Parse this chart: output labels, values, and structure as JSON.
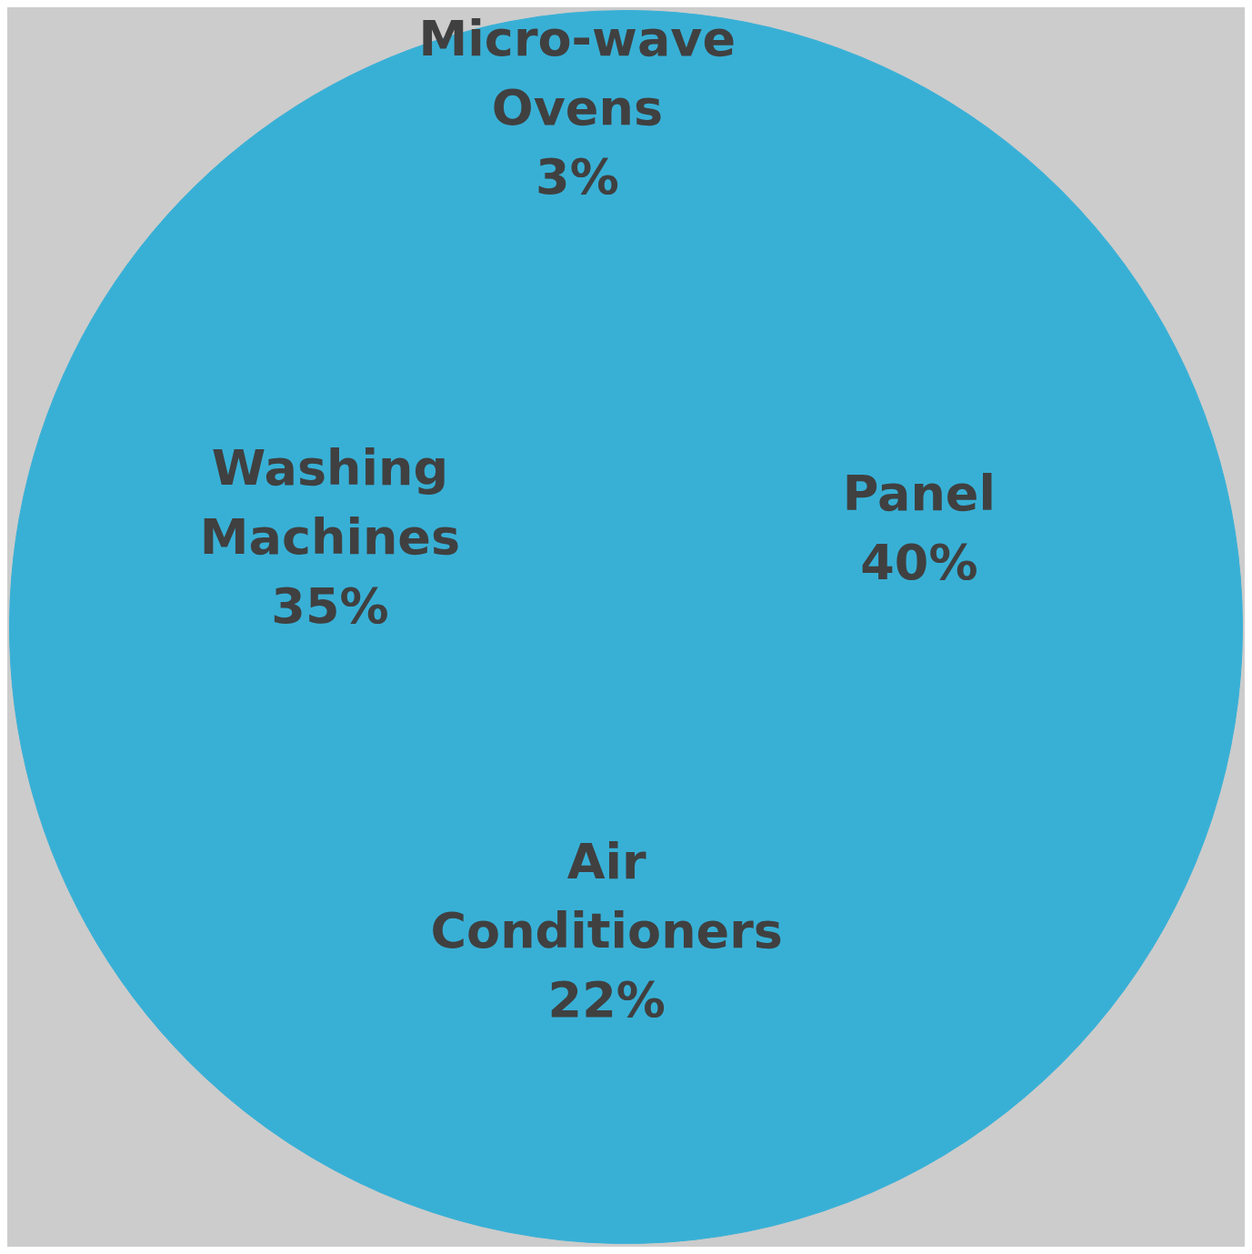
{
  "chart_data": {
    "type": "pie",
    "categories": [
      "Panel",
      "Air Conditioners",
      "Washing Machines",
      "Micro-wave Ovens"
    ],
    "values": [
      40,
      22,
      35,
      3
    ],
    "colors": [
      "#38b0d6",
      "#38b0d6",
      "#38b0d6",
      "#38b0d6"
    ],
    "value_labels": [
      "40%",
      "22%",
      "35%",
      "3%"
    ],
    "legend": false
  }
}
